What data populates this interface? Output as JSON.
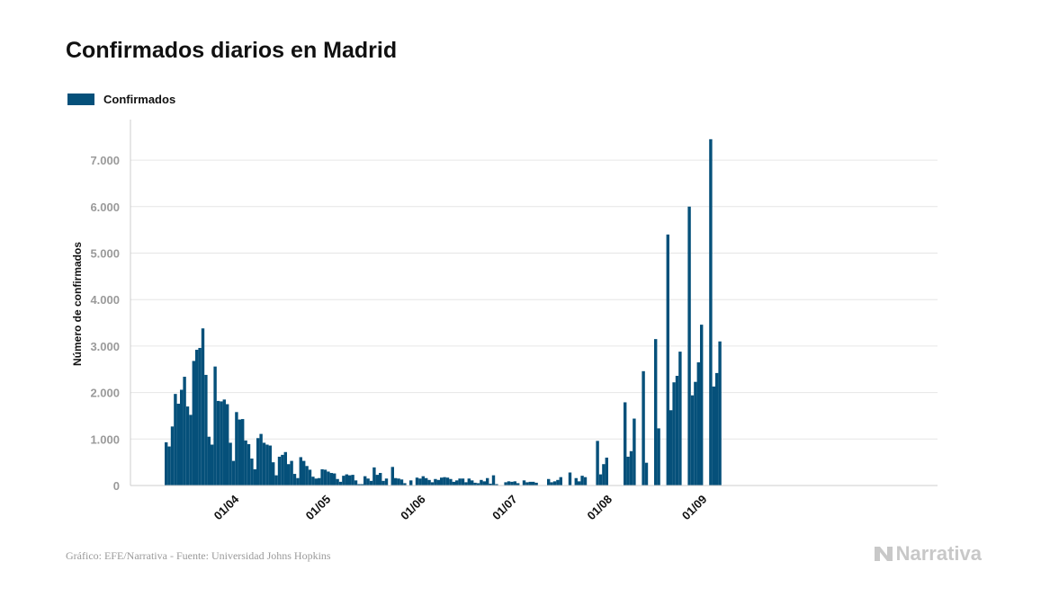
{
  "title": "Confirmados diarios en Madrid",
  "legend": {
    "label": "Confirmados"
  },
  "footer": {
    "source": "Gráfico: EFE/Narrativa - Fuente: Universidad Johns Hopkins",
    "brand": "Narrativa",
    "brand_icon": "narrativa-logo-icon"
  },
  "colors": {
    "bar": "#05507a",
    "grid": "#e6e6e6",
    "axis": "#cccccc"
  },
  "chart_data": {
    "type": "bar",
    "ylabel": "Número de confirmados",
    "xlabel": "",
    "ylim": [
      0,
      7700
    ],
    "yticks": [
      0,
      1000,
      2000,
      3000,
      4000,
      5000,
      6000,
      7000
    ],
    "ytick_labels": [
      "0",
      "1.000",
      "2.000",
      "3.000",
      "4.000",
      "5.000",
      "6.000",
      "7.000"
    ],
    "xtick_labels": [
      "01/04",
      "01/05",
      "01/06",
      "01/07",
      "01/08",
      "01/09"
    ],
    "xtick_dates": [
      "2020-04-01",
      "2020-05-01",
      "2020-06-01",
      "2020-07-01",
      "2020-08-01",
      "2020-09-01"
    ],
    "grid": true,
    "legend_position": "top-left",
    "date_range": [
      "2020-03-09",
      "2020-09-04"
    ],
    "values": [
      930,
      840,
      1270,
      1970,
      1760,
      2060,
      2340,
      1700,
      1520,
      2680,
      2920,
      2960,
      3380,
      2380,
      1050,
      880,
      2560,
      1820,
      1810,
      1850,
      1750,
      920,
      530,
      1580,
      1420,
      1430,
      970,
      890,
      580,
      350,
      1020,
      1110,
      920,
      880,
      860,
      500,
      220,
      620,
      660,
      720,
      460,
      530,
      250,
      160,
      610,
      530,
      420,
      340,
      190,
      150,
      160,
      350,
      340,
      300,
      270,
      260,
      140,
      80,
      210,
      240,
      220,
      230,
      110,
      30,
      30,
      200,
      150,
      100,
      390,
      230,
      270,
      100,
      150,
      0,
      400,
      160,
      150,
      130,
      50,
      0,
      110,
      0,
      170,
      150,
      200,
      160,
      120,
      70,
      140,
      120,
      170,
      180,
      170,
      140,
      80,
      110,
      150,
      150,
      70,
      150,
      110,
      60,
      50,
      120,
      90,
      160,
      40,
      220,
      30,
      0,
      0,
      70,
      90,
      80,
      90,
      50,
      0,
      110,
      70,
      80,
      80,
      60,
      0,
      0,
      0,
      140,
      70,
      90,
      120,
      180,
      0,
      0,
      280,
      0,
      160,
      90,
      210,
      180,
      0,
      0,
      0,
      960,
      240,
      460,
      600,
      0,
      0,
      0,
      0,
      0,
      1790,
      620,
      740,
      1440,
      0,
      0,
      2460,
      490,
      0,
      0,
      3150,
      1230,
      0,
      0,
      5400,
      1620,
      2220,
      2360,
      2880,
      0,
      0,
      6000,
      1940,
      2230,
      2650,
      3460,
      0,
      0,
      7450,
      2130,
      2420,
      3100
    ]
  }
}
